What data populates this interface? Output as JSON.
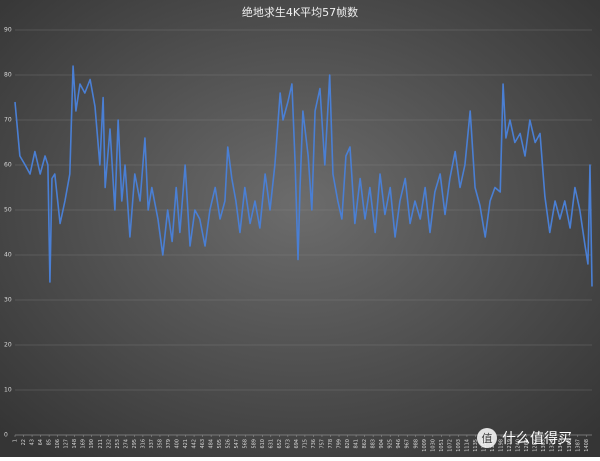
{
  "chart_data": {
    "type": "line",
    "title": "绝地求生4K平均57帧数",
    "x": [
      1,
      13,
      26,
      38,
      50,
      63,
      75,
      82,
      87,
      92,
      99,
      112,
      124,
      136,
      144,
      151,
      161,
      173,
      186,
      198,
      210,
      218,
      223,
      235,
      247,
      255,
      264,
      272,
      284,
      296,
      309,
      321,
      329,
      338,
      353,
      365,
      377,
      388,
      398,
      407,
      420,
      432,
      444,
      456,
      469,
      481,
      494,
      506,
      518,
      525,
      535,
      545,
      555,
      567,
      580,
      592,
      604,
      617,
      629,
      641,
      654,
      661,
      673,
      683,
      691,
      698,
      703,
      710,
      723,
      732,
      740,
      752,
      764,
      776,
      784,
      796,
      806,
      816,
      826,
      838,
      851,
      863,
      875,
      888,
      900,
      912,
      925,
      937,
      949,
      962,
      974,
      986,
      999,
      1011,
      1023,
      1035,
      1048,
      1060,
      1072,
      1085,
      1097,
      1109,
      1122,
      1134,
      1146,
      1159,
      1171,
      1183,
      1196,
      1203,
      1210,
      1220,
      1232,
      1245,
      1257,
      1269,
      1282,
      1294,
      1306,
      1318,
      1331,
      1343,
      1355,
      1368,
      1380,
      1392,
      1405,
      1412,
      1417,
      1422
    ],
    "series": [
      {
        "name": "帧数",
        "color": "#4a7fd4",
        "values": [
          74,
          62,
          60,
          58,
          63,
          58,
          62,
          60,
          34,
          57,
          58,
          47,
          52,
          58,
          82,
          72,
          78,
          76,
          79,
          73,
          60,
          75,
          55,
          68,
          50,
          70,
          52,
          60,
          44,
          58,
          52,
          66,
          50,
          55,
          48,
          40,
          50,
          43,
          55,
          45,
          60,
          42,
          50,
          48,
          42,
          50,
          55,
          48,
          52,
          64,
          57,
          52,
          45,
          55,
          47,
          52,
          46,
          58,
          50,
          60,
          76,
          70,
          74,
          78,
          60,
          39,
          55,
          72,
          62,
          50,
          72,
          77,
          60,
          80,
          58,
          52,
          48,
          62,
          64,
          47,
          57,
          48,
          55,
          45,
          58,
          49,
          55,
          44,
          52,
          57,
          47,
          52,
          48,
          55,
          45,
          54,
          58,
          49,
          57,
          63,
          55,
          60,
          72,
          55,
          51,
          44,
          52,
          55,
          54,
          78,
          66,
          70,
          65,
          67,
          62,
          70,
          65,
          67,
          53,
          45,
          52,
          48,
          52,
          46,
          55,
          50,
          42,
          38,
          60,
          33
        ]
      }
    ],
    "xlim": [
      1,
      1422
    ],
    "ylim": [
      0,
      90
    ],
    "yticks": [
      0,
      10,
      20,
      30,
      40,
      50,
      60,
      70,
      80,
      90
    ],
    "xticks": [
      1,
      22,
      43,
      64,
      85,
      106,
      127,
      148,
      169,
      190,
      211,
      232,
      253,
      274,
      295,
      316,
      337,
      358,
      379,
      400,
      421,
      442,
      463,
      484,
      505,
      526,
      547,
      568,
      589,
      610,
      631,
      652,
      673,
      694,
      715,
      736,
      757,
      778,
      799,
      820,
      841,
      862,
      883,
      904,
      925,
      946,
      967,
      988,
      1009,
      1030,
      1051,
      1072,
      1093,
      1114,
      1135,
      1156,
      1177,
      1198,
      1219,
      1240,
      1261,
      1282,
      1303,
      1324,
      1345,
      1366,
      1387,
      1408
    ],
    "grid": true
  },
  "watermark": {
    "logo": "值",
    "text": "什么值得买"
  }
}
